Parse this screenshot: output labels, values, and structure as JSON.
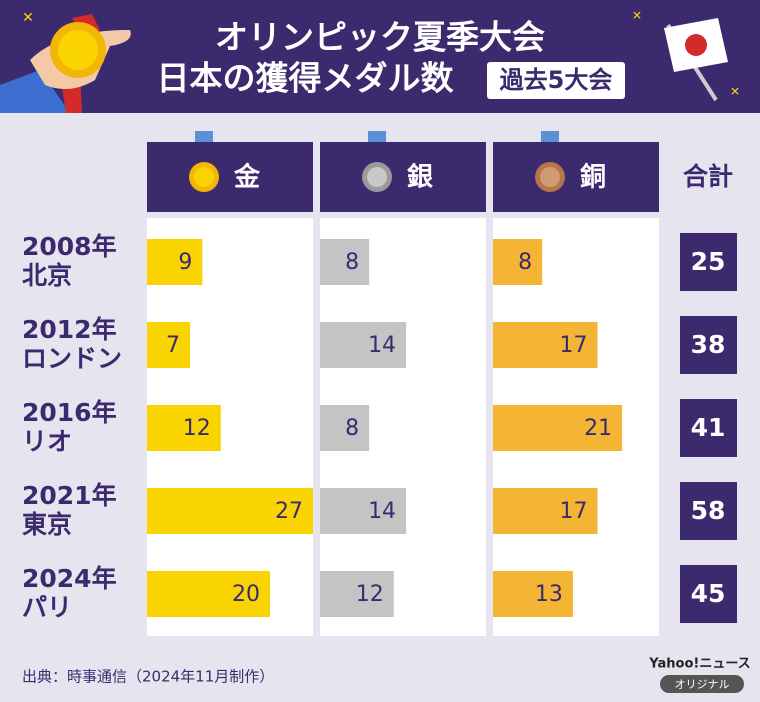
{
  "chart_data": {
    "type": "bar",
    "title_lines": [
      "オリンピック夏季大会",
      "日本の獲得メダル数"
    ],
    "badge": "過去5大会",
    "categories": [
      [
        "2008年",
        "北京"
      ],
      [
        "2012年",
        "ロンドン"
      ],
      [
        "2016年",
        "リオ"
      ],
      [
        "2021年",
        "東京"
      ],
      [
        "2024年",
        "パリ"
      ]
    ],
    "series": [
      {
        "name": "金",
        "color": "#fad400",
        "values": [
          9,
          7,
          12,
          27,
          20
        ]
      },
      {
        "name": "銀",
        "color": "#c4c4c4",
        "values": [
          8,
          14,
          8,
          14,
          12
        ]
      },
      {
        "name": "銅",
        "color": "#f4b434",
        "values": [
          8,
          17,
          21,
          17,
          13
        ]
      }
    ],
    "total_label": "合計",
    "totals": [
      25,
      38,
      41,
      58,
      45
    ],
    "xlim": [
      0,
      27
    ],
    "source": "出典：時事通信（2024年11月制作）",
    "brand": "Yahoo!ニュース",
    "brand_tag": "オリジナル"
  }
}
